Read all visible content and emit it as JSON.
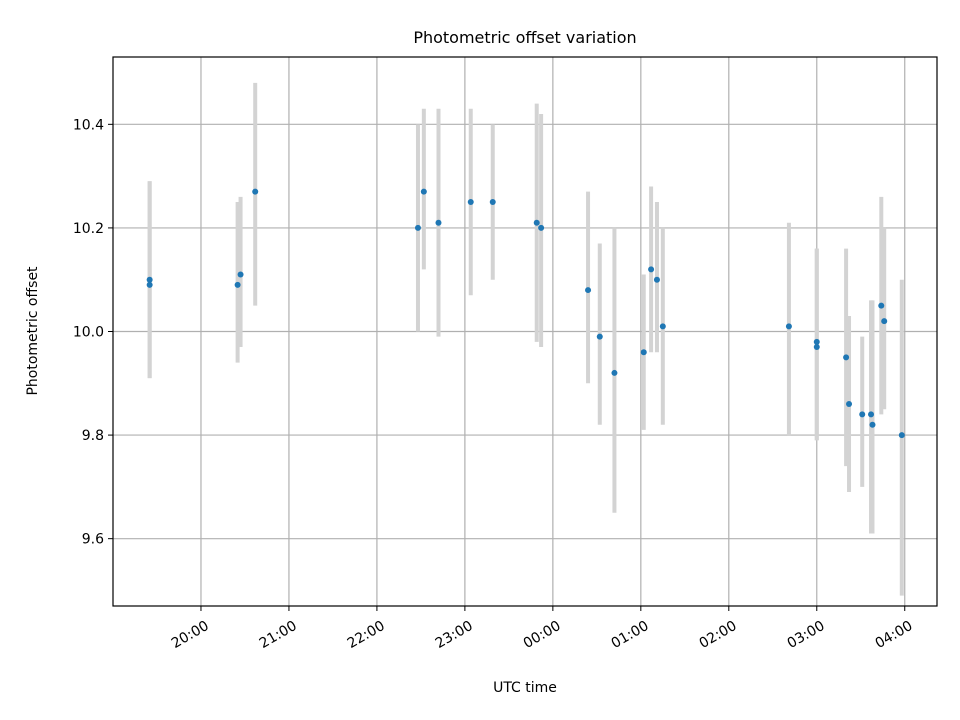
{
  "chart_data": {
    "type": "scatter",
    "title": "Photometric offset variation",
    "xlabel": "UTC time",
    "ylabel": "Photometric offset",
    "x_tick_labels": [
      "20:00",
      "21:00",
      "22:00",
      "23:00",
      "00:00",
      "01:00",
      "02:00",
      "03:00",
      "04:00"
    ],
    "y_tick_labels": [
      "9.6",
      "9.8",
      "10.0",
      "10.2",
      "10.4"
    ],
    "y_ticks": [
      9.6,
      9.8,
      10.0,
      10.2,
      10.4
    ],
    "ylim": [
      9.47,
      10.53
    ],
    "xlim": [
      "19:00",
      "04:22"
    ],
    "grid": true,
    "points": [
      {
        "t": "19:25",
        "y": 10.1,
        "err_low": 9.91,
        "err_high": 10.29
      },
      {
        "t": "19:25",
        "y": 10.09,
        "err_low": 9.91,
        "err_high": 10.29
      },
      {
        "t": "20:25",
        "y": 10.09,
        "err_low": 9.94,
        "err_high": 10.25
      },
      {
        "t": "20:27",
        "y": 10.11,
        "err_low": 9.97,
        "err_high": 10.26
      },
      {
        "t": "20:37",
        "y": 10.27,
        "err_low": 10.05,
        "err_high": 10.48
      },
      {
        "t": "22:28",
        "y": 10.2,
        "err_low": 10.0,
        "err_high": 10.4
      },
      {
        "t": "22:32",
        "y": 10.27,
        "err_low": 10.12,
        "err_high": 10.43
      },
      {
        "t": "22:42",
        "y": 10.21,
        "err_low": 9.99,
        "err_high": 10.43
      },
      {
        "t": "23:04",
        "y": 10.25,
        "err_low": 10.07,
        "err_high": 10.43
      },
      {
        "t": "23:19",
        "y": 10.25,
        "err_low": 10.1,
        "err_high": 10.4
      },
      {
        "t": "23:49",
        "y": 10.21,
        "err_low": 9.98,
        "err_high": 10.44
      },
      {
        "t": "23:52",
        "y": 10.2,
        "err_low": 9.97,
        "err_high": 10.42
      },
      {
        "t": "00:24",
        "y": 10.08,
        "err_low": 9.9,
        "err_high": 10.27
      },
      {
        "t": "00:32",
        "y": 9.99,
        "err_low": 9.82,
        "err_high": 10.17
      },
      {
        "t": "00:42",
        "y": 9.92,
        "err_low": 9.65,
        "err_high": 10.2
      },
      {
        "t": "01:02",
        "y": 9.96,
        "err_low": 9.81,
        "err_high": 10.11
      },
      {
        "t": "01:07",
        "y": 10.12,
        "err_low": 9.96,
        "err_high": 10.28
      },
      {
        "t": "01:11",
        "y": 10.1,
        "err_low": 9.96,
        "err_high": 10.25
      },
      {
        "t": "01:15",
        "y": 10.01,
        "err_low": 9.82,
        "err_high": 10.2
      },
      {
        "t": "02:41",
        "y": 10.01,
        "err_low": 9.8,
        "err_high": 10.21
      },
      {
        "t": "03:00",
        "y": 9.98,
        "err_low": 9.79,
        "err_high": 10.16
      },
      {
        "t": "03:00",
        "y": 9.97,
        "err_low": 9.79,
        "err_high": 10.16
      },
      {
        "t": "03:20",
        "y": 9.95,
        "err_low": 9.74,
        "err_high": 10.16
      },
      {
        "t": "03:22",
        "y": 9.86,
        "err_low": 9.69,
        "err_high": 10.03
      },
      {
        "t": "03:31",
        "y": 9.84,
        "err_low": 9.7,
        "err_high": 9.99
      },
      {
        "t": "03:37",
        "y": 9.84,
        "err_low": 9.61,
        "err_high": 10.06
      },
      {
        "t": "03:38",
        "y": 9.82,
        "err_low": 9.61,
        "err_high": 10.06
      },
      {
        "t": "03:44",
        "y": 10.05,
        "err_low": 9.84,
        "err_high": 10.26
      },
      {
        "t": "03:46",
        "y": 10.02,
        "err_low": 9.85,
        "err_high": 10.2
      },
      {
        "t": "03:58",
        "y": 9.8,
        "err_low": 9.49,
        "err_high": 10.1
      }
    ],
    "colors": {
      "marker": "#1f77b4",
      "errorbar": "#d3d3d3",
      "grid": "#b0b0b0",
      "frame": "#000000"
    }
  }
}
